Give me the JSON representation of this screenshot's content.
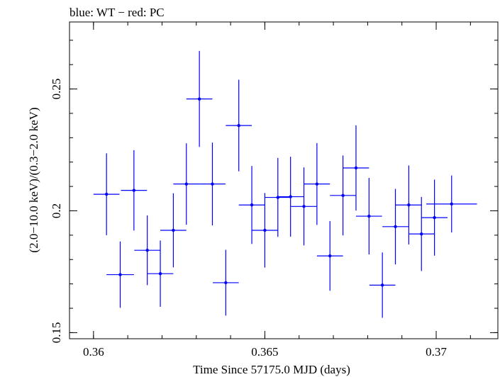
{
  "chart_data": {
    "type": "scatter",
    "title": "blue: WT − red: PC",
    "xlabel": "Time Since 57175.0 MJD (days)",
    "ylabel": "(2.0−10.0 keV)/(0.3−2.0 keV)",
    "xlim": [
      0.3593,
      0.3718
    ],
    "ylim": [
      0.1475,
      0.2775
    ],
    "x_ticks": [
      {
        "value": 0.36,
        "label": "0.36"
      },
      {
        "value": 0.365,
        "label": "0.365"
      },
      {
        "value": 0.37,
        "label": "0.37"
      }
    ],
    "y_ticks": [
      {
        "value": 0.15,
        "label": "0.15"
      },
      {
        "value": 0.2,
        "label": "0.2"
      },
      {
        "value": 0.25,
        "label": "0.25"
      }
    ],
    "x_minor_step": 0.001,
    "y_minor_step": 0.01,
    "grid": false,
    "legend": "none",
    "series": [
      {
        "color": "#0000ff",
        "points": [
          {
            "x": 0.36038,
            "xerr": 0.00038,
            "y": 0.2068,
            "yerr": 0.0168
          },
          {
            "x": 0.36078,
            "xerr": 0.0004,
            "y": 0.1738,
            "yerr": 0.0136
          },
          {
            "x": 0.36118,
            "xerr": 0.00038,
            "y": 0.2084,
            "yerr": 0.0165
          },
          {
            "x": 0.36157,
            "xerr": 0.00038,
            "y": 0.1838,
            "yerr": 0.0143
          },
          {
            "x": 0.36195,
            "xerr": 0.00038,
            "y": 0.1742,
            "yerr": 0.0136
          },
          {
            "x": 0.36233,
            "xerr": 0.00038,
            "y": 0.192,
            "yerr": 0.0152
          },
          {
            "x": 0.36271,
            "xerr": 0.00038,
            "y": 0.211,
            "yerr": 0.0167
          },
          {
            "x": 0.36309,
            "xerr": 0.00038,
            "y": 0.2459,
            "yerr": 0.0197
          },
          {
            "x": 0.36347,
            "xerr": 0.00038,
            "y": 0.211,
            "yerr": 0.017
          },
          {
            "x": 0.36386,
            "xerr": 0.00038,
            "y": 0.1705,
            "yerr": 0.0135
          },
          {
            "x": 0.36424,
            "xerr": 0.00038,
            "y": 0.235,
            "yerr": 0.0188
          },
          {
            "x": 0.36462,
            "xerr": 0.00038,
            "y": 0.2024,
            "yerr": 0.016
          },
          {
            "x": 0.365,
            "xerr": 0.00038,
            "y": 0.192,
            "yerr": 0.0153
          },
          {
            "x": 0.36538,
            "xerr": 0.00038,
            "y": 0.2055,
            "yerr": 0.0162
          },
          {
            "x": 0.36575,
            "xerr": 0.00038,
            "y": 0.2058,
            "yerr": 0.0164
          },
          {
            "x": 0.36614,
            "xerr": 0.00038,
            "y": 0.2018,
            "yerr": 0.016
          },
          {
            "x": 0.36652,
            "xerr": 0.00038,
            "y": 0.211,
            "yerr": 0.0168
          },
          {
            "x": 0.3669,
            "xerr": 0.00038,
            "y": 0.1815,
            "yerr": 0.0143
          },
          {
            "x": 0.36728,
            "xerr": 0.00038,
            "y": 0.2063,
            "yerr": 0.0164
          },
          {
            "x": 0.36766,
            "xerr": 0.00038,
            "y": 0.2176,
            "yerr": 0.0175
          },
          {
            "x": 0.36804,
            "xerr": 0.00038,
            "y": 0.1978,
            "yerr": 0.0157
          },
          {
            "x": 0.36843,
            "xerr": 0.00038,
            "y": 0.1695,
            "yerr": 0.0134
          },
          {
            "x": 0.36881,
            "xerr": 0.00038,
            "y": 0.1935,
            "yerr": 0.0155
          },
          {
            "x": 0.3692,
            "xerr": 0.00038,
            "y": 0.2024,
            "yerr": 0.0162
          },
          {
            "x": 0.36957,
            "xerr": 0.00038,
            "y": 0.1905,
            "yerr": 0.0152
          },
          {
            "x": 0.36995,
            "xerr": 0.00038,
            "y": 0.1972,
            "yerr": 0.0156
          },
          {
            "x": 0.37045,
            "xerr": 0.00074,
            "y": 0.2028,
            "yerr": 0.0117
          }
        ]
      }
    ]
  }
}
